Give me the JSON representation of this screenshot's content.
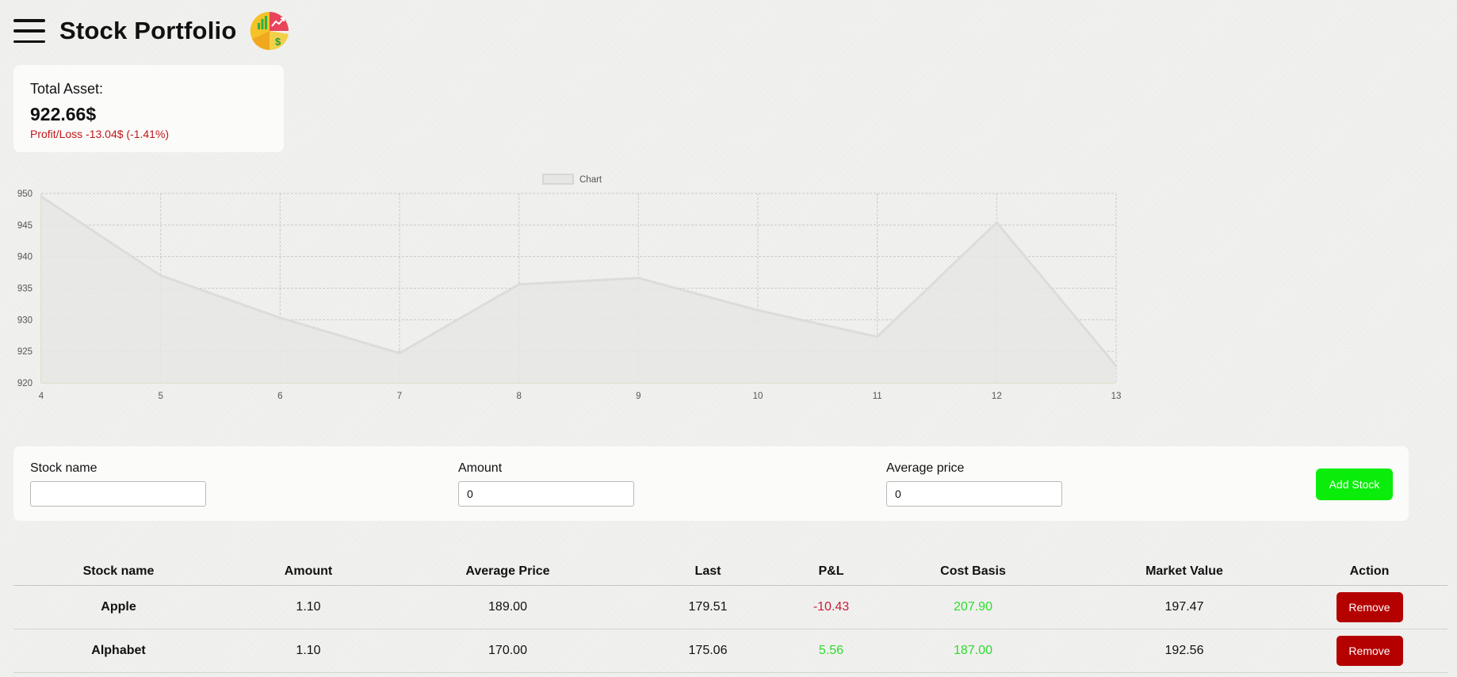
{
  "app": {
    "title": "Stock Portfolio",
    "menu_icon": "hamburger-menu-icon",
    "logo_icon": "portfolio-pie-chart-logo-icon"
  },
  "summary": {
    "label": "Total Asset:",
    "value": "922.66$",
    "profit_loss": "Profit/Loss -13.04$ (-1.41%)",
    "profit_loss_color": "#c01818"
  },
  "chart_data": {
    "type": "line",
    "legend": [
      "Chart"
    ],
    "legend_position": "top-center",
    "x": [
      4,
      5,
      6,
      7,
      8,
      9,
      10,
      11,
      12,
      13
    ],
    "series": [
      {
        "name": "Chart",
        "values": [
          949.5,
          937,
          930.3,
          924.7,
          935.6,
          936.6,
          931.5,
          927.3,
          945.4,
          922.7
        ]
      }
    ],
    "y_ticks": [
      920,
      925,
      930,
      935,
      940,
      945,
      950
    ],
    "ylim": [
      920,
      950
    ],
    "xlim": [
      4,
      13
    ],
    "grid": true,
    "fill": true,
    "line_color": "#dcdcdc",
    "fill_color": "#e6e6e4"
  },
  "form": {
    "stock_name_label": "Stock name",
    "stock_name_value": "",
    "amount_label": "Amount",
    "amount_value": "0",
    "average_price_label": "Average price",
    "average_price_value": "0",
    "add_button": "Add Stock",
    "add_button_color": "#0aed0a"
  },
  "table": {
    "headers": [
      "Stock name",
      "Amount",
      "Average Price",
      "Last",
      "P&L",
      "Cost Basis",
      "Market Value",
      "Action"
    ],
    "rows": [
      {
        "name": "Apple",
        "amount": "1.10",
        "average_price": "189.00",
        "last": "179.51",
        "pl": "-10.43",
        "pl_status": "negative",
        "cost_basis": "207.90",
        "market_value": "197.47",
        "action": "Remove"
      },
      {
        "name": "Alphabet",
        "amount": "1.10",
        "average_price": "170.00",
        "last": "175.06",
        "pl": "5.56",
        "pl_status": "positive",
        "cost_basis": "187.00",
        "market_value": "192.56",
        "action": "Remove"
      }
    ],
    "negative_color": "#c81e3a",
    "positive_color": "#2ddc2d",
    "remove_button_color": "#b50000"
  }
}
